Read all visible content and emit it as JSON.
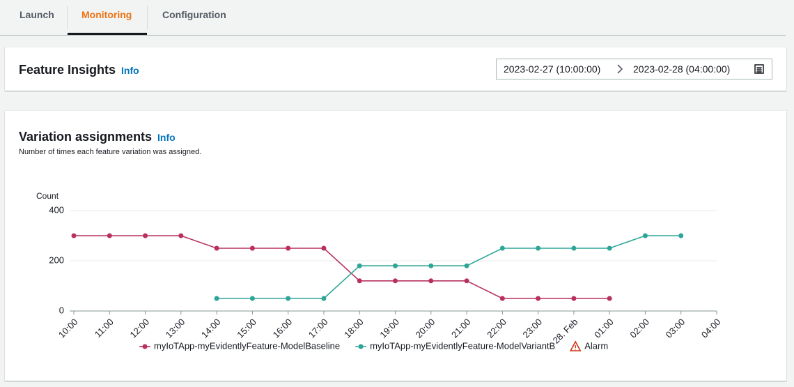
{
  "tabs": [
    "Launch",
    "Monitoring",
    "Configuration"
  ],
  "insights": {
    "title": "Feature Insights",
    "info": "Info",
    "start": "2023-02-27 (10:00:00)",
    "end": "2023-02-28 (04:00:00)"
  },
  "chart_data": {
    "type": "line",
    "title": "Variation assignments",
    "info": "Info",
    "subtitle": "Number of times each feature variation was assigned.",
    "y_label": "Count",
    "categories": [
      "10:00",
      "11:00",
      "12:00",
      "13:00",
      "14:00",
      "15:00",
      "16:00",
      "17:00",
      "18:00",
      "19:00",
      "20:00",
      "21:00",
      "22:00",
      "23:00",
      "28. Feb",
      "01:00",
      "02:00",
      "03:00",
      "04:00"
    ],
    "series": [
      {
        "name": "myIoTApp-myEvidentlyFeature-ModelBaseline",
        "color": "#b8305d",
        "values": [
          300,
          300,
          300,
          300,
          250,
          250,
          250,
          250,
          120,
          120,
          120,
          120,
          50,
          50,
          50,
          50,
          null,
          null,
          null
        ]
      },
      {
        "name": "myIoTApp-myEvidentlyFeature-ModelVariantB",
        "color": "#2ea597",
        "values": [
          null,
          null,
          null,
          null,
          50,
          50,
          50,
          50,
          180,
          180,
          180,
          180,
          250,
          250,
          250,
          250,
          300,
          300,
          null
        ]
      }
    ],
    "alarm_label": "Alarm",
    "ylim": [
      0,
      400
    ],
    "yticks": [
      0,
      200,
      400
    ],
    "grid": true
  }
}
